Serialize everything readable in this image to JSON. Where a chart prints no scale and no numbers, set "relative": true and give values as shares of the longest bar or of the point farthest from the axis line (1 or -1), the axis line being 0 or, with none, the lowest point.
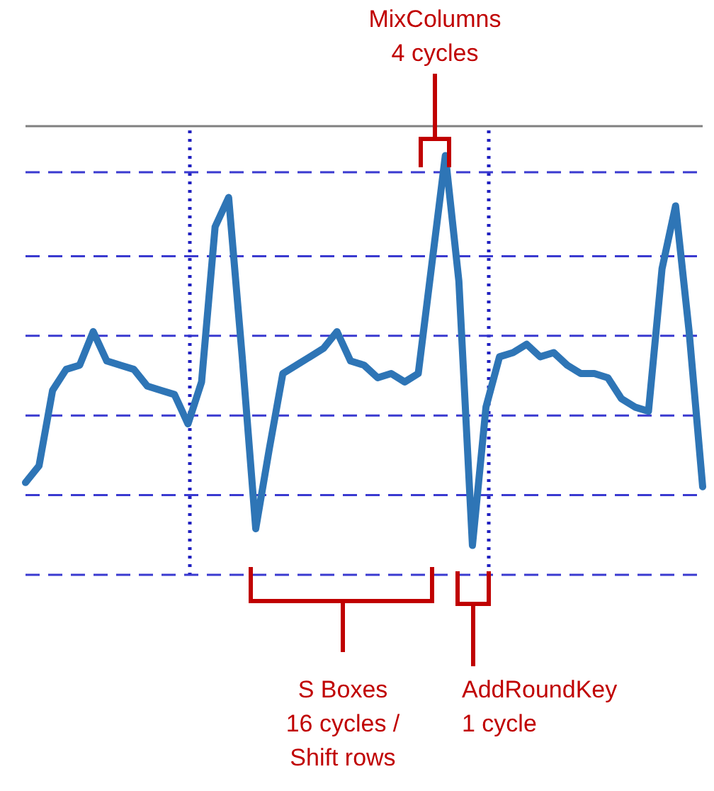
{
  "chart_data": {
    "type": "line",
    "relative": true,
    "legend": false,
    "marker": "none",
    "line_style": "solid",
    "categories": [
      null,
      null,
      null,
      null,
      null,
      null,
      null,
      null,
      null,
      null,
      null,
      null,
      null,
      null,
      null,
      null,
      null,
      null,
      null,
      null,
      null,
      null,
      null,
      null,
      null,
      null,
      null,
      null,
      null,
      null,
      null,
      null,
      null,
      null,
      null,
      null,
      null,
      null,
      null,
      null,
      null,
      null,
      null,
      null,
      null,
      null,
      null,
      null,
      null,
      null,
      null
    ],
    "series": [
      {
        "color": "#2e75b6",
        "values": [
          -0.85,
          -0.81,
          -0.63,
          -0.58,
          -0.57,
          -0.49,
          -0.56,
          -0.57,
          -0.58,
          -0.62,
          -0.63,
          -0.64,
          -0.71,
          -0.61,
          -0.24,
          -0.17,
          -0.55,
          -0.96,
          -0.77,
          -0.59,
          -0.57,
          -0.55,
          -0.53,
          -0.49,
          -0.56,
          -0.57,
          -0.6,
          -0.59,
          -0.61,
          -0.59,
          -0.33,
          -0.07,
          -0.37,
          -1,
          -0.67,
          -0.55,
          -0.54,
          -0.52,
          -0.55,
          -0.54,
          -0.57,
          -0.59,
          -0.59,
          -0.6,
          -0.65,
          -0.67,
          -0.68,
          -0.34,
          -0.19,
          -0.49,
          -0.86
        ]
      }
    ],
    "ref_lines": [
      {
        "axis": "y",
        "value": -0.11,
        "color": "#3a3ad0",
        "line_style": "dashed"
      },
      {
        "axis": "y",
        "value": -0.31,
        "color": "#3a3ad0",
        "line_style": "dashed"
      },
      {
        "axis": "y",
        "value": -0.5,
        "color": "#3a3ad0",
        "line_style": "dashed"
      },
      {
        "axis": "y",
        "value": -0.69,
        "color": "#3a3ad0",
        "line_style": "dashed"
      },
      {
        "axis": "y",
        "value": -0.88,
        "color": "#3a3ad0",
        "line_style": "dashed"
      },
      {
        "axis": "y",
        "value": -1.07,
        "color": "#3a3ad0",
        "line_style": "dashed"
      }
    ],
    "annotations": [
      "MixColumns\n4 cycles",
      "S Boxes\n16 cycles /\nShift rows",
      "AddRoundKey\n1 cycle"
    ]
  }
}
